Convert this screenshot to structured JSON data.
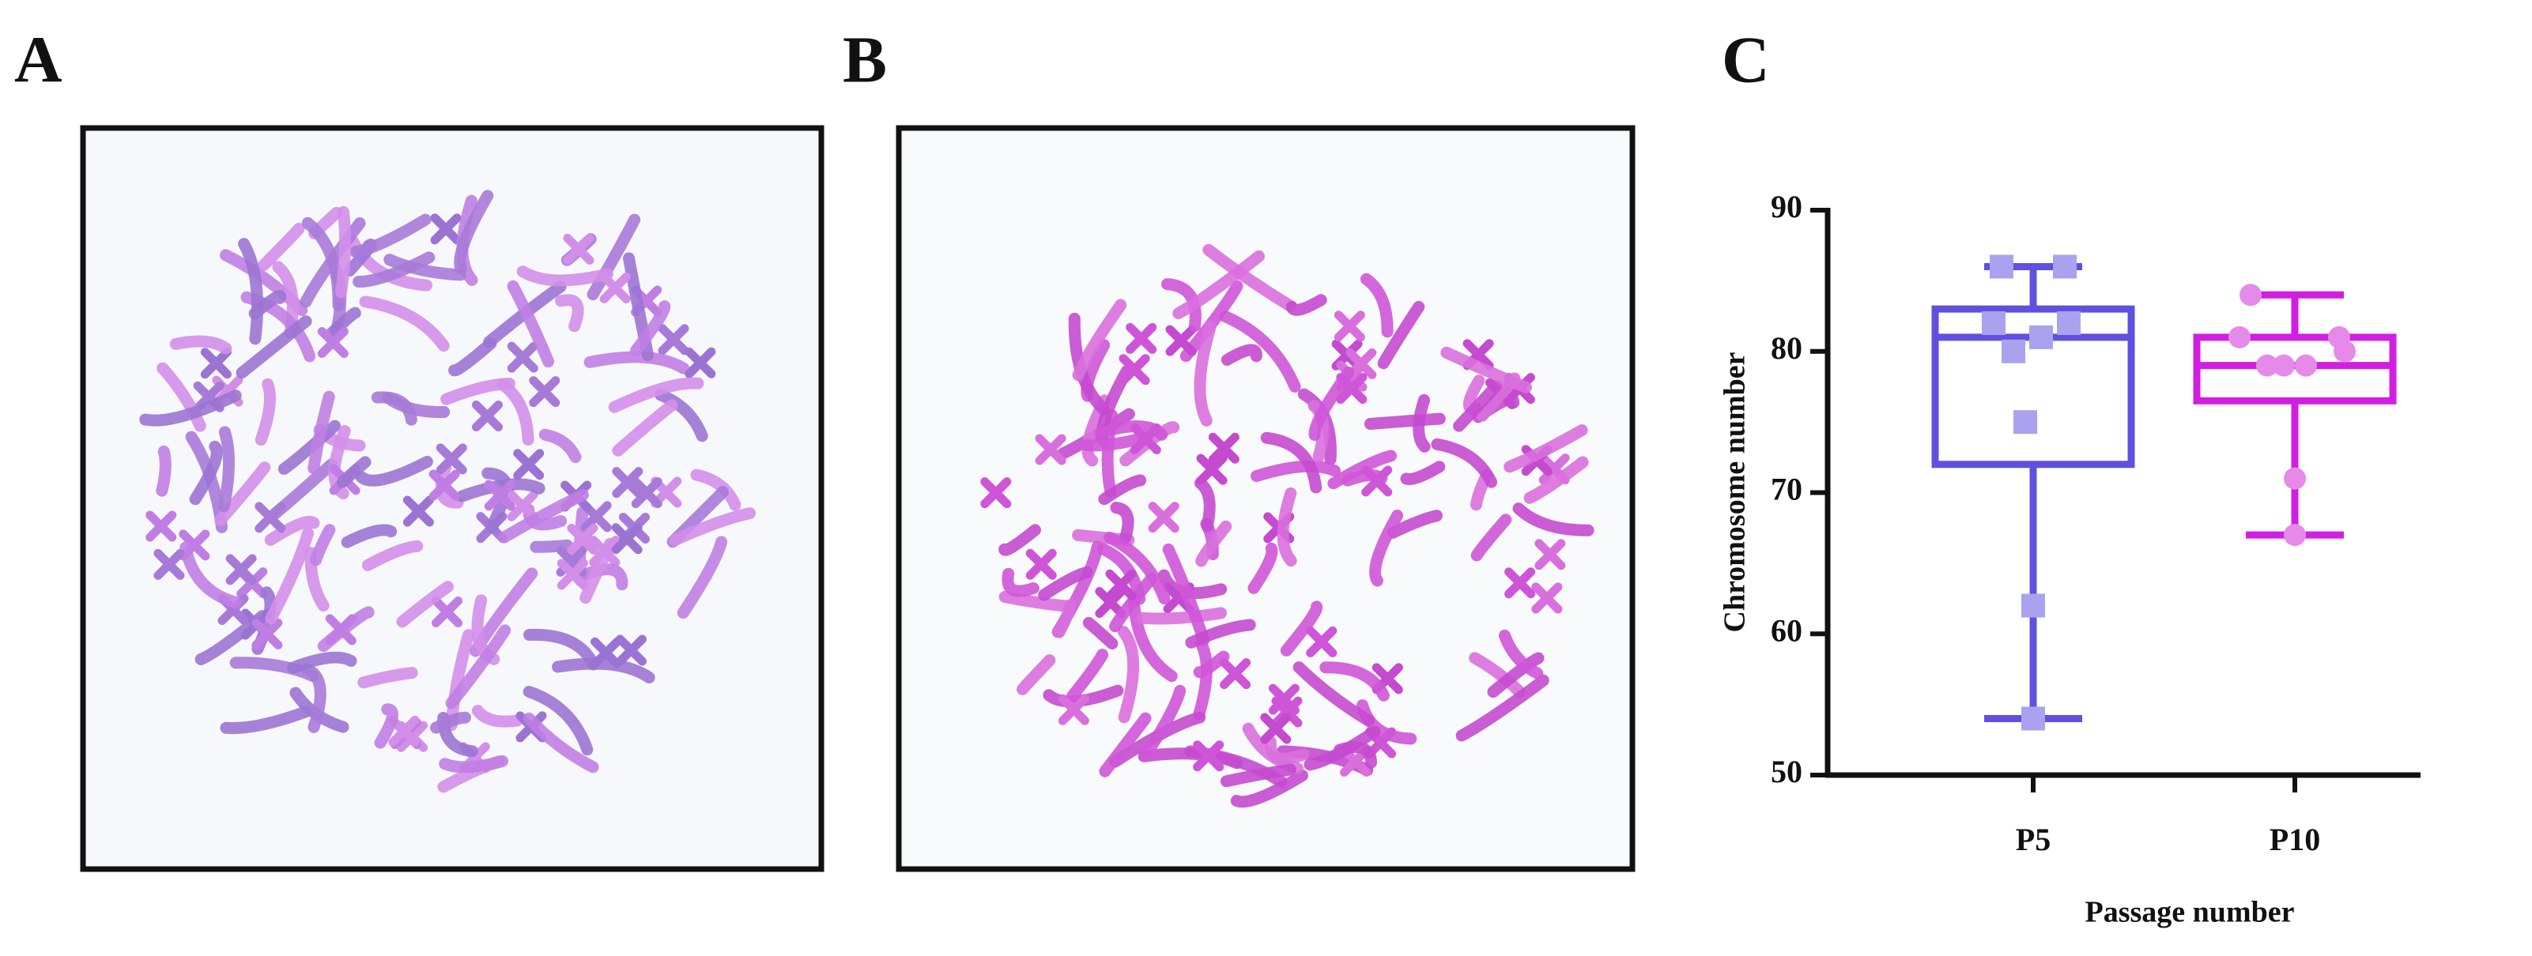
{
  "panels": {
    "a": {
      "label": "A"
    },
    "b": {
      "label": "B"
    }
  },
  "chart_data": {
    "type": "box",
    "label": "C",
    "ylabel": "Chromosome number",
    "xlabel": "Passage number",
    "categories": [
      "P5",
      "P10"
    ],
    "ylim": [
      50,
      90
    ],
    "yticks": [
      50,
      60,
      70,
      80,
      90
    ],
    "boxes": [
      {
        "color": "#5f50e0",
        "point_color": "#aaa2ef",
        "marker": "square",
        "min": 54,
        "q1": 72,
        "median": 81,
        "q3": 83,
        "max": 86,
        "points": [
          86,
          86,
          82,
          82,
          80,
          81,
          75,
          62,
          54
        ]
      },
      {
        "color": "#d21ee2",
        "point_color": "#e58ae9",
        "marker": "circle",
        "min": 67,
        "q1": 76.5,
        "median": 79,
        "q3": 81,
        "max": 84,
        "points": [
          84,
          81,
          81,
          80,
          79,
          79,
          79,
          71,
          67
        ]
      }
    ]
  }
}
